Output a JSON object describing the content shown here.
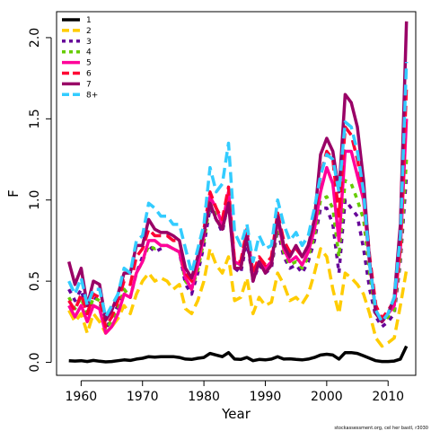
{
  "chart_data": {
    "type": "line",
    "xlabel": "Year",
    "ylabel": "F",
    "xlim": [
      1956.0,
      2014.5
    ],
    "ylim": [
      -0.08,
      2.16
    ],
    "x_ticks": [
      1960,
      1970,
      1980,
      1990,
      2000,
      2010
    ],
    "y_ticks": [
      0.0,
      0.5,
      1.0,
      1.5,
      2.0
    ],
    "x_tick_labels": [
      "1960",
      "1970",
      "1980",
      "1990",
      "2000",
      "2010"
    ],
    "y_tick_labels": [
      "0.0",
      "0.5",
      "1.0",
      "1.5",
      "2.0"
    ],
    "legend_position": "top-left",
    "grid": false,
    "footnote": "stockassessment.org, cel her bastl, r3030",
    "x": [
      1958,
      1959,
      1960,
      1961,
      1962,
      1963,
      1964,
      1965,
      1966,
      1967,
      1968,
      1969,
      1970,
      1971,
      1972,
      1973,
      1974,
      1975,
      1976,
      1977,
      1978,
      1979,
      1980,
      1981,
      1982,
      1983,
      1984,
      1985,
      1986,
      1987,
      1988,
      1989,
      1990,
      1991,
      1992,
      1993,
      1994,
      1995,
      1996,
      1997,
      1998,
      1999,
      2000,
      2001,
      2002,
      2003,
      2004,
      2005,
      2006,
      2007,
      2008,
      2009,
      2010,
      2011,
      2012,
      2013
    ],
    "series": [
      {
        "name": "1",
        "color": "#000000",
        "dash": "solid",
        "values": [
          0.01,
          0.008,
          0.01,
          0.005,
          0.012,
          0.007,
          0.003,
          0.005,
          0.01,
          0.015,
          0.012,
          0.02,
          0.025,
          0.035,
          0.032,
          0.035,
          0.035,
          0.035,
          0.03,
          0.02,
          0.018,
          0.025,
          0.03,
          0.055,
          0.045,
          0.035,
          0.06,
          0.02,
          0.018,
          0.03,
          0.01,
          0.018,
          0.015,
          0.02,
          0.035,
          0.02,
          0.022,
          0.018,
          0.015,
          0.02,
          0.03,
          0.045,
          0.05,
          0.045,
          0.02,
          0.06,
          0.06,
          0.055,
          0.04,
          0.025,
          0.01,
          0.005,
          0.005,
          0.008,
          0.02,
          0.1
        ]
      },
      {
        "name": "2",
        "color": "#ffcc00",
        "dash": "12,6",
        "values": [
          0.32,
          0.25,
          0.3,
          0.18,
          0.3,
          0.25,
          0.18,
          0.22,
          0.27,
          0.35,
          0.3,
          0.42,
          0.5,
          0.55,
          0.5,
          0.52,
          0.5,
          0.45,
          0.48,
          0.33,
          0.3,
          0.38,
          0.5,
          0.7,
          0.6,
          0.55,
          0.65,
          0.38,
          0.4,
          0.52,
          0.3,
          0.4,
          0.35,
          0.37,
          0.55,
          0.48,
          0.38,
          0.4,
          0.36,
          0.42,
          0.55,
          0.7,
          0.65,
          0.45,
          0.3,
          0.55,
          0.52,
          0.48,
          0.42,
          0.3,
          0.15,
          0.1,
          0.12,
          0.15,
          0.35,
          0.57
        ]
      },
      {
        "name": "3",
        "color": "#660099",
        "dash": "5,6",
        "values": [
          0.45,
          0.38,
          0.45,
          0.3,
          0.4,
          0.38,
          0.2,
          0.28,
          0.35,
          0.45,
          0.4,
          0.55,
          0.65,
          0.72,
          0.68,
          0.7,
          0.72,
          0.7,
          0.68,
          0.48,
          0.42,
          0.55,
          0.72,
          0.95,
          0.88,
          0.8,
          1.0,
          0.58,
          0.55,
          0.75,
          0.5,
          0.6,
          0.55,
          0.58,
          0.82,
          0.65,
          0.58,
          0.6,
          0.55,
          0.62,
          0.75,
          0.95,
          0.95,
          0.85,
          0.55,
          1.0,
          0.95,
          0.9,
          0.7,
          0.45,
          0.28,
          0.22,
          0.25,
          0.3,
          0.62,
          1.15
        ]
      },
      {
        "name": "4",
        "color": "#66cc00",
        "dash": "5,6",
        "values": [
          0.4,
          0.33,
          0.4,
          0.28,
          0.4,
          0.38,
          0.2,
          0.26,
          0.33,
          0.45,
          0.4,
          0.55,
          0.62,
          0.72,
          0.7,
          0.72,
          0.72,
          0.7,
          0.68,
          0.5,
          0.45,
          0.57,
          0.75,
          0.98,
          0.9,
          0.82,
          1.02,
          0.6,
          0.58,
          0.78,
          0.52,
          0.62,
          0.57,
          0.6,
          0.85,
          0.68,
          0.6,
          0.62,
          0.58,
          0.65,
          0.78,
          1.0,
          1.02,
          0.95,
          0.65,
          1.12,
          1.1,
          1.0,
          0.88,
          0.55,
          0.3,
          0.25,
          0.28,
          0.32,
          0.65,
          1.25
        ]
      },
      {
        "name": "5",
        "color": "#ff0099",
        "dash": "solid",
        "values": [
          0.35,
          0.28,
          0.35,
          0.25,
          0.35,
          0.33,
          0.18,
          0.22,
          0.3,
          0.42,
          0.4,
          0.55,
          0.62,
          0.75,
          0.75,
          0.72,
          0.72,
          0.7,
          0.68,
          0.52,
          0.45,
          0.6,
          0.78,
          1.02,
          0.95,
          0.85,
          1.05,
          0.62,
          0.6,
          0.8,
          0.55,
          0.62,
          0.58,
          0.62,
          0.88,
          0.7,
          0.62,
          0.65,
          0.6,
          0.68,
          0.82,
          1.05,
          1.2,
          1.1,
          0.75,
          1.3,
          1.3,
          1.15,
          1.0,
          0.6,
          0.32,
          0.25,
          0.3,
          0.35,
          0.7,
          1.5
        ]
      },
      {
        "name": "6",
        "color": "#ff0033",
        "dash": "12,6",
        "values": [
          0.38,
          0.32,
          0.42,
          0.3,
          0.42,
          0.4,
          0.22,
          0.28,
          0.38,
          0.5,
          0.48,
          0.65,
          0.7,
          0.82,
          0.78,
          0.78,
          0.78,
          0.75,
          0.75,
          0.55,
          0.5,
          0.65,
          0.82,
          1.05,
          0.95,
          0.88,
          1.08,
          0.62,
          0.62,
          0.82,
          0.55,
          0.65,
          0.6,
          0.65,
          0.92,
          0.75,
          0.68,
          0.7,
          0.65,
          0.72,
          0.88,
          1.15,
          1.3,
          1.25,
          0.9,
          1.45,
          1.4,
          1.25,
          1.05,
          0.65,
          0.35,
          0.27,
          0.32,
          0.38,
          0.72,
          1.7
        ]
      },
      {
        "name": "7",
        "color": "#990066",
        "dash": "solid",
        "values": [
          0.62,
          0.48,
          0.58,
          0.35,
          0.5,
          0.48,
          0.26,
          0.32,
          0.42,
          0.55,
          0.55,
          0.72,
          0.72,
          0.88,
          0.82,
          0.8,
          0.8,
          0.78,
          0.75,
          0.58,
          0.52,
          0.65,
          0.8,
          0.98,
          0.88,
          0.82,
          0.98,
          0.58,
          0.58,
          0.78,
          0.5,
          0.62,
          0.55,
          0.6,
          0.9,
          0.72,
          0.65,
          0.72,
          0.65,
          0.72,
          0.88,
          1.28,
          1.38,
          1.3,
          1.05,
          1.65,
          1.6,
          1.45,
          1.12,
          0.62,
          0.3,
          0.25,
          0.3,
          0.4,
          0.85,
          2.1
        ]
      },
      {
        "name": "8+",
        "color": "#33ccff",
        "dash": "12,6",
        "values": [
          0.5,
          0.42,
          0.52,
          0.35,
          0.45,
          0.45,
          0.28,
          0.35,
          0.42,
          0.58,
          0.55,
          0.75,
          0.78,
          0.98,
          0.95,
          0.9,
          0.9,
          0.85,
          0.85,
          0.7,
          0.55,
          0.7,
          0.85,
          1.2,
          1.05,
          1.1,
          1.35,
          0.8,
          0.72,
          0.85,
          0.62,
          0.78,
          0.7,
          0.72,
          1.0,
          0.85,
          0.75,
          0.8,
          0.72,
          0.78,
          0.95,
          1.15,
          1.28,
          1.25,
          1.05,
          1.48,
          1.45,
          1.3,
          1.05,
          0.6,
          0.32,
          0.25,
          0.3,
          0.4,
          0.78,
          1.85
        ]
      }
    ]
  }
}
